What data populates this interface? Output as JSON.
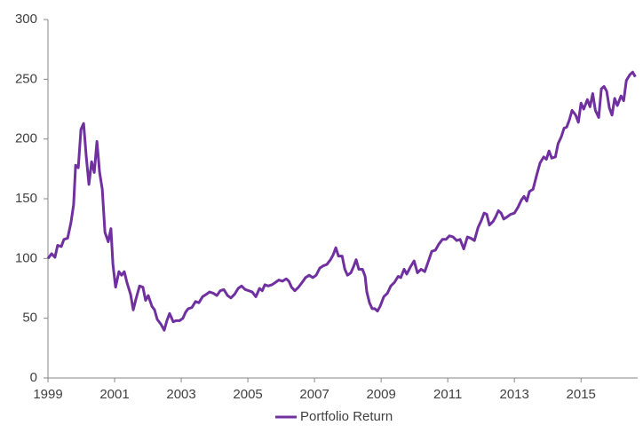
{
  "chart_data": {
    "type": "line",
    "xlim": [
      1999,
      2016.7
    ],
    "xticks": [
      1999,
      2001,
      2003,
      2005,
      2007,
      2009,
      2011,
      2013,
      2015
    ],
    "ylim": [
      0,
      300
    ],
    "yticks": [
      0,
      50,
      100,
      150,
      200,
      250,
      300
    ],
    "grid": false,
    "legend": "bottom",
    "x": [
      1999.0,
      1999.11,
      1999.21,
      1999.29,
      1999.4,
      1999.48,
      1999.59,
      1999.69,
      1999.77,
      1999.83,
      1999.91,
      1999.99,
      2000.07,
      2000.15,
      2000.23,
      2000.31,
      2000.39,
      2000.47,
      2000.55,
      2000.63,
      2000.71,
      2000.81,
      2000.89,
      2000.95,
      2001.03,
      2001.13,
      2001.21,
      2001.29,
      2001.37,
      2001.48,
      2001.56,
      2001.64,
      2001.75,
      2001.85,
      2001.93,
      2002.01,
      2002.12,
      2002.2,
      2002.28,
      2002.39,
      2002.49,
      2002.57,
      2002.65,
      2002.76,
      2002.84,
      2002.95,
      2003.05,
      2003.13,
      2003.21,
      2003.32,
      2003.43,
      2003.53,
      2003.64,
      2003.75,
      2003.85,
      2003.96,
      2004.07,
      2004.17,
      2004.28,
      2004.39,
      2004.49,
      2004.6,
      2004.71,
      2004.81,
      2004.92,
      2005.03,
      2005.13,
      2005.24,
      2005.35,
      2005.43,
      2005.51,
      2005.61,
      2005.72,
      2005.83,
      2005.93,
      2006.04,
      2006.15,
      2006.23,
      2006.31,
      2006.41,
      2006.52,
      2006.63,
      2006.73,
      2006.84,
      2006.95,
      2007.05,
      2007.16,
      2007.27,
      2007.37,
      2007.48,
      2007.56,
      2007.64,
      2007.72,
      2007.83,
      2007.91,
      2007.99,
      2008.09,
      2008.17,
      2008.25,
      2008.33,
      2008.44,
      2008.52,
      2008.57,
      2008.65,
      2008.73,
      2008.81,
      2008.89,
      2008.97,
      2009.08,
      2009.19,
      2009.29,
      2009.4,
      2009.51,
      2009.59,
      2009.69,
      2009.77,
      2009.88,
      2009.99,
      2010.09,
      2010.2,
      2010.31,
      2010.41,
      2010.52,
      2010.63,
      2010.73,
      2010.84,
      2010.95,
      2011.05,
      2011.16,
      2011.27,
      2011.37,
      2011.48,
      2011.59,
      2011.69,
      2011.8,
      2011.91,
      2012.01,
      2012.09,
      2012.17,
      2012.25,
      2012.36,
      2012.44,
      2012.52,
      2012.6,
      2012.68,
      2012.79,
      2012.89,
      2013.0,
      2013.11,
      2013.21,
      2013.29,
      2013.37,
      2013.45,
      2013.56,
      2013.67,
      2013.77,
      2013.88,
      2013.96,
      2014.04,
      2014.12,
      2014.23,
      2014.31,
      2014.41,
      2014.49,
      2014.57,
      2014.65,
      2014.73,
      2014.84,
      2014.92,
      2015.0,
      2015.08,
      2015.19,
      2015.27,
      2015.35,
      2015.43,
      2015.53,
      2015.61,
      2015.69,
      2015.77,
      2015.85,
      2015.93,
      2016.01,
      2016.09,
      2016.2,
      2016.28,
      2016.36,
      2016.47,
      2016.55,
      2016.63
    ],
    "series": [
      {
        "name": "Portfolio Return",
        "color": "#7030a0",
        "values": [
          100,
          104,
          101,
          111,
          110,
          116,
          117,
          130,
          145,
          178,
          176,
          208,
          213,
          185,
          162,
          181,
          172,
          198,
          172,
          158,
          122,
          114,
          125,
          95,
          76,
          89,
          86,
          89,
          80,
          70,
          57,
          66,
          77,
          76,
          65,
          69,
          60,
          57,
          49,
          45,
          40,
          48,
          54,
          47,
          48,
          48,
          50,
          55,
          58,
          59,
          64,
          63,
          68,
          70,
          72,
          71,
          69,
          73,
          74,
          69,
          67,
          70,
          75,
          77,
          74,
          73,
          72,
          68,
          75,
          73,
          78,
          77,
          78,
          80,
          82,
          81,
          83,
          81,
          76,
          73,
          76,
          80,
          84,
          86,
          84,
          86,
          92,
          94,
          95,
          99,
          103,
          109,
          102,
          102,
          91,
          86,
          88,
          93,
          99,
          91,
          91,
          85,
          72,
          63,
          58,
          58,
          56,
          60,
          68,
          71,
          77,
          80,
          85,
          84,
          91,
          87,
          93,
          98,
          88,
          91,
          89,
          97,
          106,
          107,
          112,
          116,
          116,
          119,
          118,
          115,
          116,
          108,
          118,
          117,
          115,
          126,
          132,
          138,
          137,
          128,
          131,
          135,
          140,
          138,
          133,
          135,
          137,
          138,
          143,
          149,
          152,
          148,
          156,
          158,
          170,
          180,
          185,
          183,
          190,
          184,
          185,
          196,
          202,
          209,
          210,
          216,
          224,
          220,
          214,
          230,
          225,
          233,
          227,
          238,
          224,
          218,
          242,
          244,
          240,
          226,
          220,
          234,
          228,
          236,
          232,
          249,
          254,
          256,
          252
        ]
      }
    ]
  }
}
